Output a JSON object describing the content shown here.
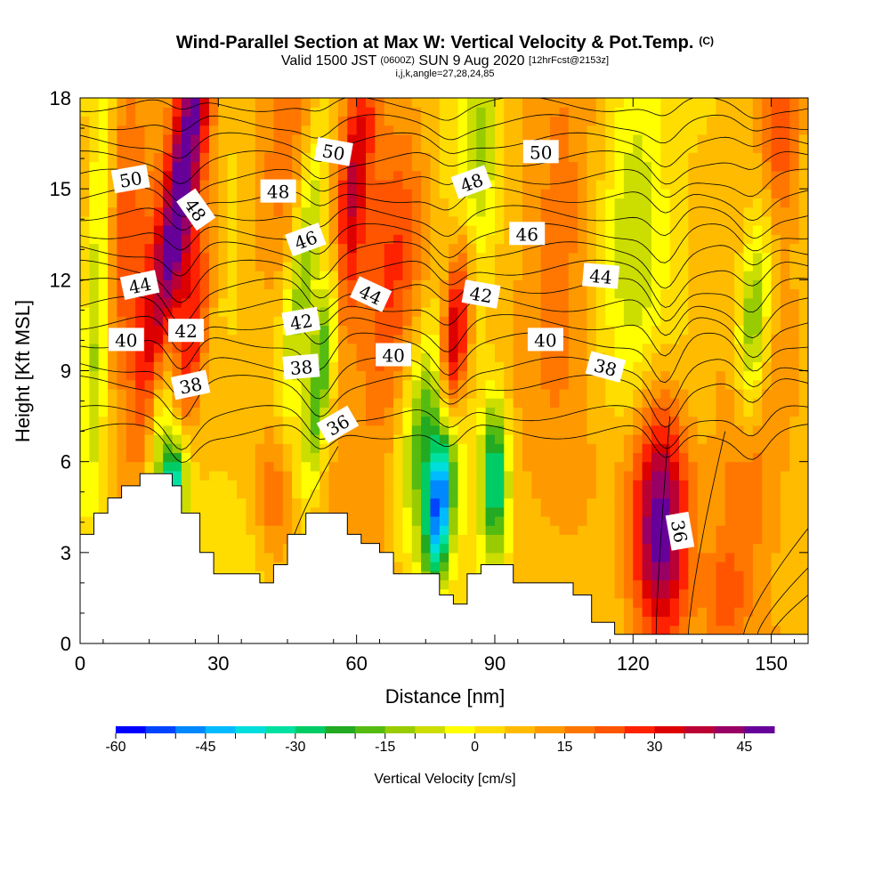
{
  "header": {
    "title": "Wind-Parallel Section at Max W: Vertical Velocity & Pot.Temp.",
    "copyright": "(C)",
    "valid_prefix": "Valid 1500 JST",
    "valid_utc": "(0600Z)",
    "valid_date": "SUN 9 Aug 2020",
    "forecast": "[12hrFcst@2153z]",
    "indices": "i,j,k,angle=27,28,24,85"
  },
  "chart_data": {
    "type": "heatmap",
    "xlabel": "Distance [nm]",
    "ylabel": "Height [Kft MSL]",
    "xlim": [
      0,
      158
    ],
    "ylim": [
      0,
      18
    ],
    "xticks": [
      0,
      30,
      60,
      90,
      120,
      150
    ],
    "yticks": [
      0,
      3,
      6,
      9,
      12,
      15,
      18
    ],
    "colorbar": {
      "label": "Vertical Velocity [cm/s]",
      "min": -60,
      "max": 50,
      "step": 5,
      "ticks": [
        -60,
        -45,
        -30,
        -15,
        0,
        15,
        30,
        45
      ],
      "colors": [
        "#0000ff",
        "#0044ff",
        "#0088ff",
        "#00bbff",
        "#00dddd",
        "#00e0a0",
        "#00cc66",
        "#22aa22",
        "#55bb11",
        "#99cc00",
        "#ccdd00",
        "#ffff00",
        "#ffdd00",
        "#ffbb00",
        "#ff9900",
        "#ff7700",
        "#ff5500",
        "#ff2200",
        "#dd0000",
        "#bb0033",
        "#990066",
        "#660099"
      ]
    },
    "terrain_kft": [
      [
        0,
        3.6
      ],
      [
        3,
        4.3
      ],
      [
        6,
        4.8
      ],
      [
        9,
        5.2
      ],
      [
        13,
        5.6
      ],
      [
        18,
        5.6
      ],
      [
        20,
        5.2
      ],
      [
        22,
        4.3
      ],
      [
        26,
        3.0
      ],
      [
        29,
        2.3
      ],
      [
        39,
        2.0
      ],
      [
        42,
        2.6
      ],
      [
        45,
        3.6
      ],
      [
        49,
        4.3
      ],
      [
        58,
        3.6
      ],
      [
        61,
        3.3
      ],
      [
        65,
        3.0
      ],
      [
        68,
        2.3
      ],
      [
        78,
        1.6
      ],
      [
        81,
        1.3
      ],
      [
        84,
        2.3
      ],
      [
        87,
        2.6
      ],
      [
        94,
        2.0
      ],
      [
        107,
        1.6
      ],
      [
        111,
        0.7
      ],
      [
        116,
        0.3
      ],
      [
        158,
        0.3
      ]
    ],
    "wcells": [
      {
        "x": 22,
        "y": 15,
        "sx": 3.0,
        "sy": 5.0,
        "tilt": 5.5,
        "w": 48
      },
      {
        "x": 24,
        "y": 10,
        "sx": 2.5,
        "sy": 3.0,
        "tilt": 5.5,
        "w": 22
      },
      {
        "x": 20,
        "y": 5,
        "sx": 2.0,
        "sy": 1.4,
        "tilt": 2,
        "w": -50
      },
      {
        "x": 18,
        "y": 8,
        "sx": 2.2,
        "sy": 2.4,
        "tilt": 3,
        "w": -25
      },
      {
        "x": 4,
        "y": 12,
        "sx": 2.0,
        "sy": 5.0,
        "tilt": 1.5,
        "w": -22
      },
      {
        "x": 10,
        "y": 14,
        "sx": 4.0,
        "sy": 4.0,
        "tilt": 0,
        "w": 14
      },
      {
        "x": 53,
        "y": 9.5,
        "sx": 2.0,
        "sy": 3.0,
        "tilt": 4.5,
        "w": -40
      },
      {
        "x": 49,
        "y": 13,
        "sx": 2.5,
        "sy": 4.0,
        "tilt": 4.5,
        "w": -22
      },
      {
        "x": 58,
        "y": 14,
        "sx": 2.5,
        "sy": 4.0,
        "tilt": 5,
        "w": 30
      },
      {
        "x": 68,
        "y": 12,
        "sx": 5.0,
        "sy": 4.5,
        "tilt": 3,
        "w": 18
      },
      {
        "x": 43,
        "y": 15,
        "sx": 5.0,
        "sy": 4.0,
        "tilt": 3,
        "w": 12
      },
      {
        "x": 42,
        "y": 5,
        "sx": 2.5,
        "sy": 1.6,
        "tilt": 0,
        "w": 14
      },
      {
        "x": 78,
        "y": 4.5,
        "sx": 2.0,
        "sy": 1.8,
        "tilt": 3,
        "w": -48
      },
      {
        "x": 75,
        "y": 7,
        "sx": 3.5,
        "sy": 2.5,
        "tilt": 2,
        "w": -25
      },
      {
        "x": 90,
        "y": 5.5,
        "sx": 2.0,
        "sy": 1.8,
        "tilt": 0,
        "w": -38
      },
      {
        "x": 81,
        "y": 10,
        "sx": 2.0,
        "sy": 2.2,
        "tilt": 3,
        "w": 32
      },
      {
        "x": 86,
        "y": 15,
        "sx": 2.5,
        "sy": 3.5,
        "tilt": 3,
        "w": -20
      },
      {
        "x": 84,
        "y": 12,
        "sx": 2.0,
        "sy": 3.0,
        "tilt": 3,
        "w": 14
      },
      {
        "x": 104,
        "y": 13,
        "sx": 6.0,
        "sy": 4.0,
        "tilt": 0,
        "w": 10
      },
      {
        "x": 126,
        "y": 4,
        "sx": 4.5,
        "sy": 3.0,
        "tilt": 0,
        "w": 45
      },
      {
        "x": 120,
        "y": 14,
        "sx": 5.0,
        "sy": 4.0,
        "tilt": 0,
        "w": -14
      },
      {
        "x": 146,
        "y": 10.5,
        "sx": 2.5,
        "sy": 2.5,
        "tilt": 2,
        "w": -28
      },
      {
        "x": 144,
        "y": 6,
        "sx": 5.0,
        "sy": 3.0,
        "tilt": 1,
        "w": 14
      },
      {
        "x": 152,
        "y": 17,
        "sx": 3.0,
        "sy": 2.0,
        "tilt": 0,
        "w": 18
      },
      {
        "x": 140,
        "y": 1.5,
        "sx": 3.0,
        "sy": 1.2,
        "tilt": 0,
        "w": 12
      }
    ],
    "theta_contours": [
      {
        "value": 36,
        "y": 7.0
      },
      {
        "value": 38,
        "y": 8.6
      },
      {
        "value": 40,
        "y": 10.0
      },
      {
        "value": 42,
        "y": 11.2
      },
      {
        "value": 44,
        "y": 12.4
      },
      {
        "value": 46,
        "y": 13.6
      },
      {
        "value": 48,
        "y": 14.8
      },
      {
        "value": 50,
        "y": 16.0
      },
      {
        "value": 52,
        "y": 17.2
      }
    ],
    "contour_labels": [
      {
        "text": "50",
        "x": 11,
        "y": 15.3,
        "angle": 10
      },
      {
        "text": "48",
        "x": 25,
        "y": 14.3,
        "angle": -55
      },
      {
        "text": "44",
        "x": 13,
        "y": 11.8,
        "angle": 12
      },
      {
        "text": "40",
        "x": 10,
        "y": 10.0,
        "angle": 0
      },
      {
        "text": "42",
        "x": 23,
        "y": 10.3,
        "angle": 0
      },
      {
        "text": "38",
        "x": 24,
        "y": 8.5,
        "angle": 12
      },
      {
        "text": "48",
        "x": 43,
        "y": 14.9,
        "angle": 0
      },
      {
        "text": "46",
        "x": 49,
        "y": 13.3,
        "angle": 20
      },
      {
        "text": "42",
        "x": 48,
        "y": 10.6,
        "angle": 10
      },
      {
        "text": "38",
        "x": 48,
        "y": 9.1,
        "angle": 5
      },
      {
        "text": "36",
        "x": 56,
        "y": 7.2,
        "angle": 30
      },
      {
        "text": "50",
        "x": 55,
        "y": 16.2,
        "angle": -10
      },
      {
        "text": "44",
        "x": 63,
        "y": 11.5,
        "angle": -25
      },
      {
        "text": "40",
        "x": 68,
        "y": 9.5,
        "angle": 0
      },
      {
        "text": "48",
        "x": 85,
        "y": 15.2,
        "angle": 20
      },
      {
        "text": "42",
        "x": 87,
        "y": 11.5,
        "angle": -10
      },
      {
        "text": "50",
        "x": 100,
        "y": 16.2,
        "angle": 0
      },
      {
        "text": "46",
        "x": 97,
        "y": 13.5,
        "angle": 0
      },
      {
        "text": "40",
        "x": 101,
        "y": 10.0,
        "angle": 0
      },
      {
        "text": "44",
        "x": 113,
        "y": 12.1,
        "angle": -5
      },
      {
        "text": "38",
        "x": 114,
        "y": 9.1,
        "angle": -15
      },
      {
        "text": "36",
        "x": 130,
        "y": 3.7,
        "angle": -80
      }
    ]
  }
}
